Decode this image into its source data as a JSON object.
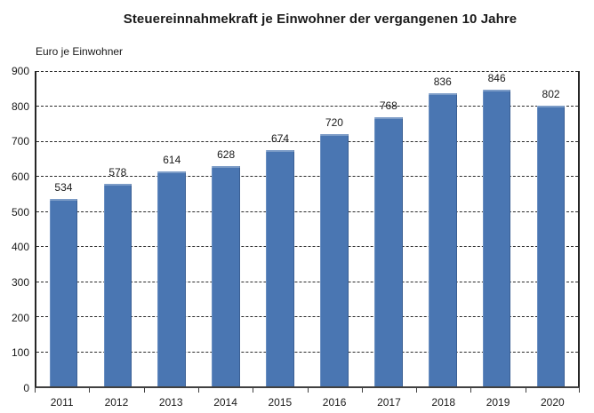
{
  "chart_title": "Steuereinnahmekraft je Einwohner der vergangenen 10 Jahre",
  "chart_data": {
    "type": "bar",
    "title": "Steuereinnahmekraft je Einwohner der vergangenen 10 Jahre",
    "ylabel": "Euro je Einwohner",
    "xlabel": "",
    "categories": [
      "2011",
      "2012",
      "2013",
      "2014",
      "2015",
      "2016",
      "2017",
      "2018",
      "2019",
      "2020"
    ],
    "values": [
      534,
      578,
      614,
      628,
      674,
      720,
      768,
      836,
      846,
      802
    ],
    "ylim": [
      0,
      900
    ],
    "ytick_interval": 100,
    "yticks": [
      0,
      100,
      200,
      300,
      400,
      500,
      600,
      700,
      800,
      900
    ],
    "grid": "horizontal-dashed",
    "legend": "none",
    "data_labels": "above-bars",
    "bar_color": "#4a76b2",
    "bar_border_color": "#3a5f94",
    "gridline_color": "#2b2b2b",
    "axis_color": "#404040",
    "text_color": "#1a1a1a"
  }
}
